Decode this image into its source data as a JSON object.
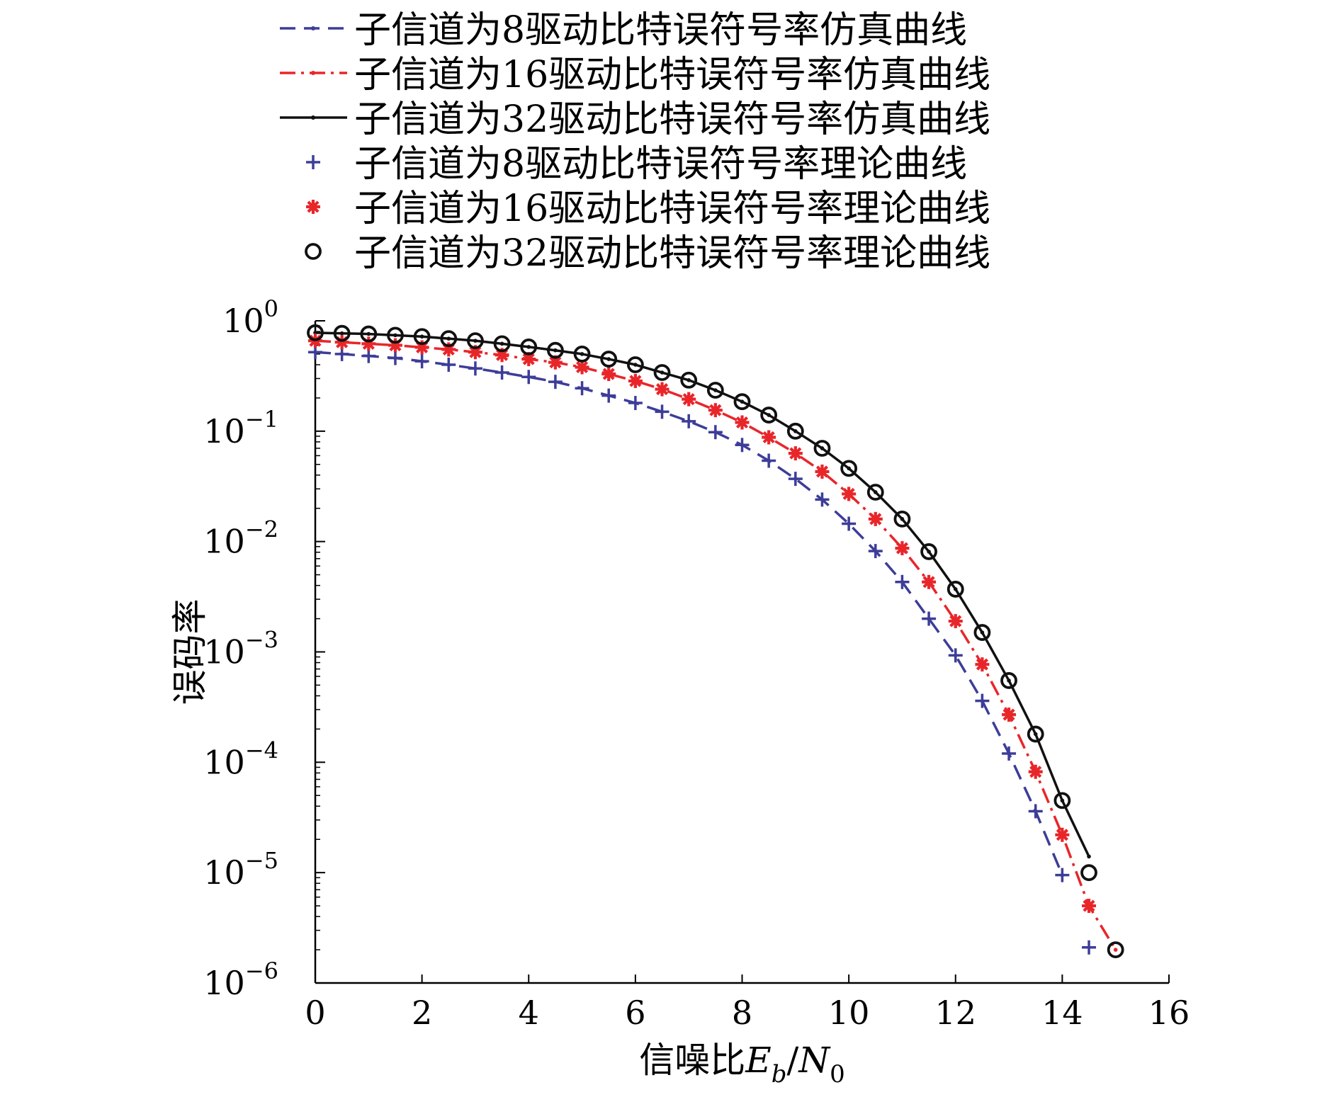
{
  "chart_data": {
    "type": "line",
    "title": "",
    "xlabel": "信噪比Eb/N0",
    "xlabel_parts": {
      "prefix": "信噪比",
      "E": "E",
      "b": "b",
      "slash": "/",
      "N": "N",
      "zero": "0"
    },
    "ylabel": "误码率",
    "yscale": "log",
    "xlim": [
      0,
      16
    ],
    "ylim": [
      1e-06,
      1
    ],
    "xticks": [
      0,
      2,
      4,
      6,
      8,
      10,
      12,
      14,
      16
    ],
    "xtick_labels": [
      "0",
      "2",
      "4",
      "6",
      "8",
      "10",
      "12",
      "14",
      "16"
    ],
    "yticks": [
      {
        "exp": 0,
        "base": "10",
        "label": "0"
      },
      {
        "exp": -1,
        "base": "10",
        "label": "−1"
      },
      {
        "exp": -2,
        "base": "10",
        "label": "−2"
      },
      {
        "exp": -3,
        "base": "10",
        "label": "−3"
      },
      {
        "exp": -4,
        "base": "10",
        "label": "−4"
      },
      {
        "exp": -5,
        "base": "10",
        "label": "−5"
      },
      {
        "exp": -6,
        "base": "10",
        "label": "−6"
      }
    ],
    "legend_position": "top",
    "series": [
      {
        "name": "子信道为8驱动比特误符号率仿真曲线",
        "kind": "simulation",
        "style": "dashed",
        "color": "#3d3d99",
        "x": [
          0,
          0.5,
          1,
          1.5,
          2,
          2.5,
          3,
          3.5,
          4,
          4.5,
          5,
          5.5,
          6,
          6.5,
          7,
          7.5,
          8,
          8.5,
          9,
          9.5,
          10,
          10.5,
          11,
          11.5,
          12,
          12.5,
          13,
          13.5,
          14
        ],
        "y": [
          0.52,
          0.5,
          0.48,
          0.46,
          0.43,
          0.4,
          0.37,
          0.34,
          0.31,
          0.28,
          0.245,
          0.21,
          0.18,
          0.15,
          0.123,
          0.098,
          0.075,
          0.054,
          0.037,
          0.024,
          0.0145,
          0.0082,
          0.0043,
          0.002,
          0.00093,
          0.00036,
          0.00012,
          3.6e-05,
          9.5e-06
        ]
      },
      {
        "name": "子信道为16驱动比特误符号率仿真曲线",
        "kind": "simulation",
        "style": "dashdot",
        "color": "#e8262a",
        "x": [
          0,
          0.5,
          1,
          1.5,
          2,
          2.5,
          3,
          3.5,
          4,
          4.5,
          5,
          5.5,
          6,
          6.5,
          7,
          7.5,
          8,
          8.5,
          9,
          9.5,
          10,
          10.5,
          11,
          11.5,
          12,
          12.5,
          13,
          13.5,
          14,
          14.5,
          15
        ],
        "y": [
          0.66,
          0.64,
          0.62,
          0.6,
          0.575,
          0.55,
          0.52,
          0.49,
          0.45,
          0.42,
          0.38,
          0.33,
          0.285,
          0.24,
          0.195,
          0.155,
          0.12,
          0.088,
          0.063,
          0.043,
          0.027,
          0.016,
          0.0087,
          0.0043,
          0.0019,
          0.00077,
          0.00027,
          8.2e-05,
          2.2e-05,
          5e-06,
          2e-06
        ]
      },
      {
        "name": "子信道为32驱动比特误符号率仿真曲线",
        "kind": "simulation",
        "style": "solid",
        "color": "#111111",
        "x": [
          0,
          0.5,
          1,
          1.5,
          2,
          2.5,
          3,
          3.5,
          4,
          4.5,
          5,
          5.5,
          6,
          6.5,
          7,
          7.5,
          8,
          8.5,
          9,
          9.5,
          10,
          10.5,
          11,
          11.5,
          12,
          12.5,
          13,
          13.5,
          14,
          14.5
        ],
        "y": [
          0.78,
          0.77,
          0.76,
          0.74,
          0.72,
          0.69,
          0.66,
          0.62,
          0.58,
          0.54,
          0.5,
          0.45,
          0.4,
          0.34,
          0.29,
          0.235,
          0.185,
          0.14,
          0.1,
          0.07,
          0.046,
          0.028,
          0.016,
          0.0081,
          0.0037,
          0.0015,
          0.00055,
          0.00018,
          4.5e-05,
          1.4e-05
        ]
      },
      {
        "name": "子信道为8驱动比特误符号率理论曲线",
        "kind": "theory",
        "marker": "plus",
        "color": "#3d3d99",
        "x": [
          0,
          0.5,
          1,
          1.5,
          2,
          2.5,
          3,
          3.5,
          4,
          4.5,
          5,
          5.5,
          6,
          6.5,
          7,
          7.5,
          8,
          8.5,
          9,
          9.5,
          10,
          10.5,
          11,
          11.5,
          12,
          12.5,
          13,
          13.5,
          14,
          14.5
        ],
        "y": [
          0.52,
          0.5,
          0.48,
          0.46,
          0.43,
          0.4,
          0.37,
          0.34,
          0.31,
          0.28,
          0.245,
          0.21,
          0.18,
          0.15,
          0.123,
          0.098,
          0.075,
          0.054,
          0.037,
          0.024,
          0.0145,
          0.0082,
          0.0043,
          0.002,
          0.00093,
          0.00036,
          0.00012,
          3.6e-05,
          9.5e-06,
          2.1e-06
        ]
      },
      {
        "name": "子信道为16驱动比特误符号率理论曲线",
        "kind": "theory",
        "marker": "asterisk",
        "color": "#e8262a",
        "x": [
          0,
          0.5,
          1,
          1.5,
          2,
          2.5,
          3,
          3.5,
          4,
          4.5,
          5,
          5.5,
          6,
          6.5,
          7,
          7.5,
          8,
          8.5,
          9,
          9.5,
          10,
          10.5,
          11,
          11.5,
          12,
          12.5,
          13,
          13.5,
          14,
          14.5
        ],
        "y": [
          0.66,
          0.64,
          0.62,
          0.6,
          0.575,
          0.55,
          0.52,
          0.49,
          0.45,
          0.42,
          0.38,
          0.33,
          0.285,
          0.24,
          0.195,
          0.155,
          0.12,
          0.088,
          0.063,
          0.043,
          0.027,
          0.016,
          0.0087,
          0.0043,
          0.0019,
          0.00077,
          0.00027,
          8.2e-05,
          2.2e-05,
          5e-06
        ]
      },
      {
        "name": "子信道为32驱动比特误符号率理论曲线",
        "kind": "theory",
        "marker": "circle",
        "color": "#111111",
        "x": [
          0,
          0.5,
          1,
          1.5,
          2,
          2.5,
          3,
          3.5,
          4,
          4.5,
          5,
          5.5,
          6,
          6.5,
          7,
          7.5,
          8,
          8.5,
          9,
          9.5,
          10,
          10.5,
          11,
          11.5,
          12,
          12.5,
          13,
          13.5,
          14,
          14.5,
          15
        ],
        "y": [
          0.78,
          0.77,
          0.76,
          0.74,
          0.72,
          0.69,
          0.66,
          0.62,
          0.58,
          0.54,
          0.5,
          0.45,
          0.4,
          0.34,
          0.29,
          0.235,
          0.185,
          0.14,
          0.1,
          0.07,
          0.046,
          0.028,
          0.016,
          0.0081,
          0.0037,
          0.0015,
          0.00055,
          0.00018,
          4.5e-05,
          1e-05,
          2e-06
        ]
      }
    ]
  }
}
